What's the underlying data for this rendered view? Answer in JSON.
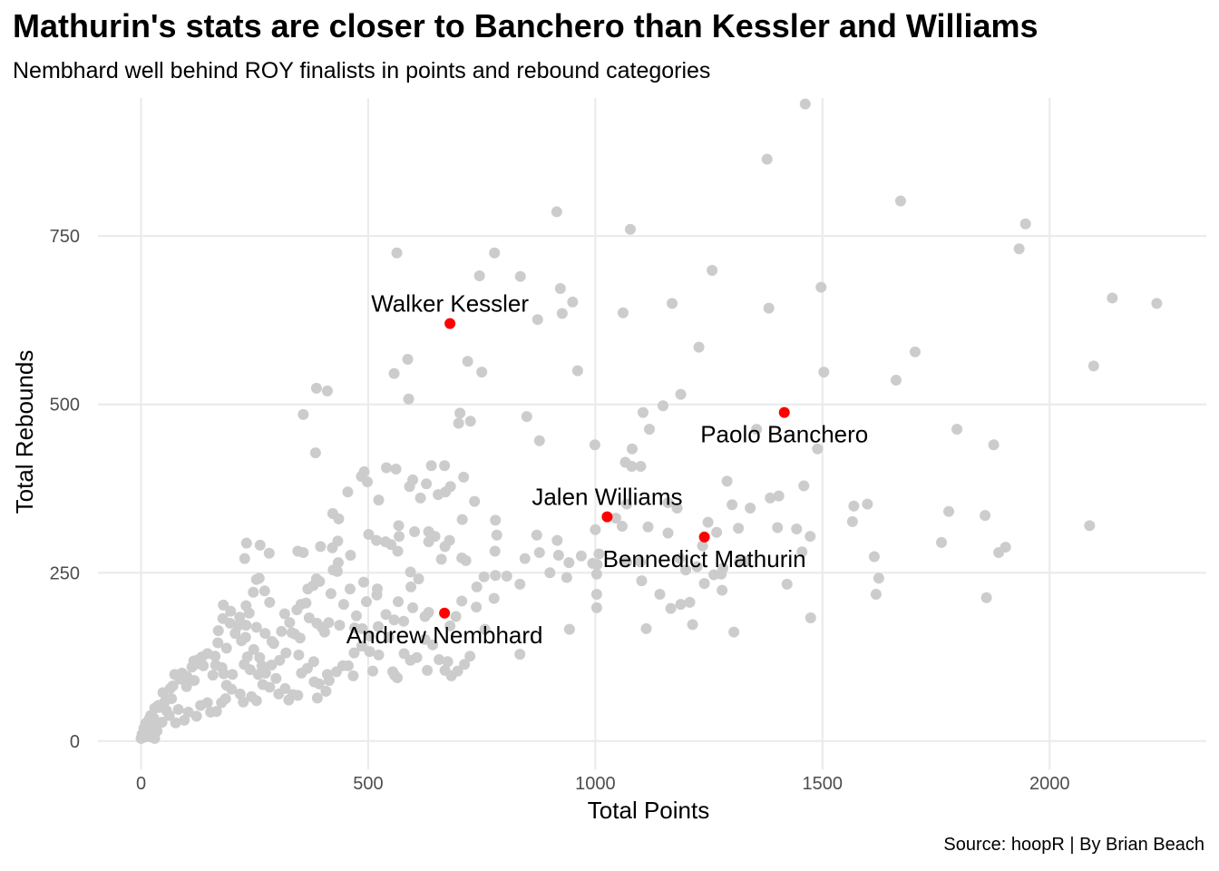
{
  "chart_data": {
    "type": "scatter",
    "title": "Mathurin's stats are closer to Banchero than Kessler and Williams",
    "subtitle": "Nembhard well behind ROY finalists in points and rebound categories",
    "caption": "Source: hoopR | By Brian Beach",
    "xlabel": "Total Points",
    "ylabel": "Total Rebounds",
    "xlim": [
      -95,
      2345
    ],
    "ylim": [
      -42,
      955
    ],
    "xticks": [
      0,
      500,
      1000,
      1500,
      2000
    ],
    "yticks": [
      0,
      250,
      500,
      750
    ],
    "grid": true,
    "colors": {
      "background": "#ffffff",
      "grid": "#ebebeb",
      "point": "#cccccc",
      "highlight": "#ff0000",
      "text": "#000000",
      "tick": "#4d4d4d"
    },
    "highlighted": [
      {
        "name": "Walker Kessler",
        "x": 680,
        "y": 620,
        "label_pos": "above"
      },
      {
        "name": "Paolo Banchero",
        "x": 1416,
        "y": 488,
        "label_pos": "below"
      },
      {
        "name": "Jalen Williams",
        "x": 1026,
        "y": 333,
        "label_pos": "above"
      },
      {
        "name": "Bennedict Mathurin",
        "x": 1240,
        "y": 303,
        "label_pos": "below"
      },
      {
        "name": "Andrew Nembhard",
        "x": 668,
        "y": 190,
        "label_pos": "below"
      }
    ],
    "points": [
      [
        1462,
        946
      ],
      [
        1378,
        864
      ],
      [
        1672,
        802
      ],
      [
        1947,
        768
      ],
      [
        1933,
        731
      ],
      [
        915,
        786
      ],
      [
        1077,
        760
      ],
      [
        563,
        725
      ],
      [
        778,
        725
      ],
      [
        1257,
        699
      ],
      [
        745,
        691
      ],
      [
        835,
        690
      ],
      [
        923,
        672
      ],
      [
        1497,
        674
      ],
      [
        950,
        652
      ],
      [
        2138,
        658
      ],
      [
        2236,
        650
      ],
      [
        1169,
        650
      ],
      [
        1382,
        643
      ],
      [
        1061,
        636
      ],
      [
        927,
        635
      ],
      [
        873,
        626
      ],
      [
        1228,
        585
      ],
      [
        1704,
        578
      ],
      [
        719,
        564
      ],
      [
        587,
        567
      ],
      [
        2097,
        557
      ],
      [
        1662,
        536
      ],
      [
        557,
        546
      ],
      [
        961,
        550
      ],
      [
        750,
        548
      ],
      [
        1503,
        548
      ],
      [
        386,
        524
      ],
      [
        410,
        520
      ],
      [
        1188,
        515
      ],
      [
        589,
        508
      ],
      [
        1149,
        498
      ],
      [
        702,
        487
      ],
      [
        357,
        485
      ],
      [
        725,
        475
      ],
      [
        849,
        482
      ],
      [
        1105,
        488
      ],
      [
        699,
        472
      ],
      [
        1119,
        463
      ],
      [
        1355,
        463
      ],
      [
        1796,
        463
      ],
      [
        1877,
        440
      ],
      [
        877,
        446
      ],
      [
        999,
        440
      ],
      [
        1081,
        434
      ],
      [
        1489,
        434
      ],
      [
        384,
        428
      ],
      [
        639,
        409
      ],
      [
        561,
        404
      ],
      [
        540,
        406
      ],
      [
        668,
        409
      ],
      [
        1066,
        414
      ],
      [
        1080,
        408
      ],
      [
        1100,
        408
      ],
      [
        491,
        400
      ],
      [
        498,
        385
      ],
      [
        598,
        388
      ],
      [
        485,
        393
      ],
      [
        628,
        382
      ],
      [
        710,
        392
      ],
      [
        1290,
        386
      ],
      [
        591,
        378
      ],
      [
        681,
        378
      ],
      [
        1404,
        364
      ],
      [
        1385,
        361
      ],
      [
        1459,
        379
      ],
      [
        1599,
        352
      ],
      [
        1569,
        349
      ],
      [
        455,
        370
      ],
      [
        670,
        370
      ],
      [
        1069,
        352
      ],
      [
        734,
        356
      ],
      [
        523,
        358
      ],
      [
        615,
        361
      ],
      [
        654,
        366
      ],
      [
        1301,
        351
      ],
      [
        1160,
        354
      ],
      [
        1180,
        346
      ],
      [
        1341,
        346
      ],
      [
        1858,
        335
      ],
      [
        1778,
        341
      ],
      [
        1566,
        326
      ],
      [
        2088,
        320
      ],
      [
        1045,
        331
      ],
      [
        422,
        338
      ],
      [
        435,
        330
      ],
      [
        567,
        320
      ],
      [
        568,
        304
      ],
      [
        633,
        311
      ],
      [
        707,
        329
      ],
      [
        780,
        328
      ],
      [
        1000,
        314
      ],
      [
        1059,
        319
      ],
      [
        1116,
        318
      ],
      [
        1160,
        309
      ],
      [
        1248,
        325
      ],
      [
        1267,
        310
      ],
      [
        1315,
        316
      ],
      [
        1401,
        317
      ],
      [
        1443,
        315
      ],
      [
        1473,
        304
      ],
      [
        1762,
        295
      ],
      [
        1903,
        288
      ],
      [
        1888,
        280
      ],
      [
        1614,
        274
      ],
      [
        1455,
        281
      ],
      [
        1236,
        290
      ],
      [
        871,
        306
      ],
      [
        916,
        298
      ],
      [
        501,
        307
      ],
      [
        433,
        297
      ],
      [
        602,
        311
      ],
      [
        679,
        298
      ],
      [
        538,
        296
      ],
      [
        518,
        298
      ],
      [
        633,
        296
      ],
      [
        647,
        304
      ],
      [
        783,
        306
      ],
      [
        232,
        294
      ],
      [
        262,
        291
      ],
      [
        228,
        271
      ],
      [
        282,
        279
      ],
      [
        345,
        282
      ],
      [
        357,
        280
      ],
      [
        395,
        289
      ],
      [
        421,
        287
      ],
      [
        461,
        276
      ],
      [
        550,
        292
      ],
      [
        565,
        282
      ],
      [
        706,
        272
      ],
      [
        715,
        268
      ],
      [
        779,
        282
      ],
      [
        845,
        271
      ],
      [
        877,
        280
      ],
      [
        919,
        276
      ],
      [
        1008,
        278
      ],
      [
        1004,
        262
      ],
      [
        1186,
        271
      ],
      [
        1317,
        266
      ],
      [
        1330,
        267
      ],
      [
        1281,
        257
      ],
      [
        1277,
        248
      ],
      [
        1261,
        247
      ],
      [
        1224,
        259
      ],
      [
        1199,
        254
      ],
      [
        1099,
        266
      ],
      [
        1069,
        266
      ],
      [
        994,
        264
      ],
      [
        969,
        275
      ],
      [
        942,
        265
      ],
      [
        900,
        250
      ],
      [
        937,
        243
      ],
      [
        1003,
        248
      ],
      [
        1102,
        238
      ],
      [
        1422,
        233
      ],
      [
        1624,
        242
      ],
      [
        1618,
        218
      ],
      [
        1861,
        213
      ],
      [
        1279,
        224
      ],
      [
        1240,
        234
      ],
      [
        1188,
        203
      ],
      [
        1208,
        206
      ],
      [
        1166,
        197
      ],
      [
        1142,
        218
      ],
      [
        1003,
        218
      ],
      [
        1003,
        198
      ],
      [
        1214,
        173
      ],
      [
        1305,
        162
      ],
      [
        1112,
        167
      ],
      [
        1474,
        183
      ],
      [
        943,
        166
      ],
      [
        834,
        129
      ],
      [
        757,
        166
      ],
      [
        739,
        229
      ],
      [
        755,
        244
      ],
      [
        780,
        246
      ],
      [
        805,
        245
      ],
      [
        834,
        233
      ],
      [
        777,
        212
      ],
      [
        738,
        199
      ],
      [
        706,
        208
      ],
      [
        693,
        185
      ],
      [
        680,
        171
      ],
      [
        633,
        191
      ],
      [
        625,
        185
      ],
      [
        598,
        198
      ],
      [
        566,
        207
      ],
      [
        593,
        251
      ],
      [
        611,
        241
      ],
      [
        661,
        270
      ],
      [
        669,
        289
      ],
      [
        594,
        229
      ],
      [
        520,
        226
      ],
      [
        519,
        217
      ],
      [
        490,
        236
      ],
      [
        432,
        252
      ],
      [
        434,
        265
      ],
      [
        423,
        254
      ],
      [
        386,
        241
      ],
      [
        393,
        237
      ],
      [
        379,
        231
      ],
      [
        367,
        226
      ],
      [
        352,
        203
      ],
      [
        363,
        205
      ],
      [
        343,
        195
      ],
      [
        327,
        176
      ],
      [
        316,
        189
      ],
      [
        283,
        206
      ],
      [
        272,
        223
      ],
      [
        260,
        242
      ],
      [
        247,
        221
      ],
      [
        254,
        240
      ],
      [
        231,
        201
      ],
      [
        238,
        190
      ],
      [
        231,
        172
      ],
      [
        217,
        184
      ],
      [
        197,
        193
      ],
      [
        180,
        182
      ],
      [
        170,
        164
      ],
      [
        169,
        146
      ],
      [
        181,
        202
      ],
      [
        196,
        175
      ],
      [
        213,
        171
      ],
      [
        207,
        160
      ],
      [
        230,
        154
      ],
      [
        234,
        125
      ],
      [
        248,
        136
      ],
      [
        261,
        124
      ],
      [
        266,
        112
      ],
      [
        240,
        106
      ],
      [
        227,
        114
      ],
      [
        201,
        99
      ],
      [
        182,
        100
      ],
      [
        178,
        109
      ],
      [
        158,
        98
      ],
      [
        163,
        126
      ],
      [
        164,
        113
      ],
      [
        137,
        112
      ],
      [
        126,
        121
      ],
      [
        116,
        119
      ],
      [
        117,
        90
      ],
      [
        101,
        96
      ],
      [
        100,
        81
      ],
      [
        86,
        92
      ],
      [
        74,
        99
      ],
      [
        70,
        82
      ],
      [
        67,
        63
      ],
      [
        52,
        58
      ],
      [
        38,
        53
      ],
      [
        30,
        49
      ],
      [
        21,
        38
      ],
      [
        17,
        32
      ],
      [
        10,
        26
      ],
      [
        6,
        19
      ],
      [
        2,
        10
      ],
      [
        0,
        4
      ],
      [
        8,
        6
      ],
      [
        14,
        14
      ],
      [
        26,
        22
      ],
      [
        35,
        15
      ],
      [
        46,
        28
      ],
      [
        56,
        45
      ],
      [
        62,
        38
      ],
      [
        82,
        47
      ],
      [
        76,
        27
      ],
      [
        95,
        31
      ],
      [
        104,
        43
      ],
      [
        122,
        37
      ],
      [
        131,
        53
      ],
      [
        146,
        57
      ],
      [
        153,
        43
      ],
      [
        166,
        44
      ],
      [
        177,
        57
      ],
      [
        186,
        63
      ],
      [
        188,
        83
      ],
      [
        199,
        77
      ],
      [
        218,
        70
      ],
      [
        225,
        58
      ],
      [
        243,
        66
      ],
      [
        254,
        60
      ],
      [
        268,
        84
      ],
      [
        283,
        80
      ],
      [
        297,
        93
      ],
      [
        303,
        70
      ],
      [
        317,
        78
      ],
      [
        325,
        61
      ],
      [
        334,
        69
      ],
      [
        345,
        68
      ],
      [
        353,
        101
      ],
      [
        366,
        108
      ],
      [
        381,
        88
      ],
      [
        388,
        64
      ],
      [
        392,
        85
      ],
      [
        410,
        99
      ],
      [
        430,
        103
      ],
      [
        444,
        112
      ],
      [
        456,
        112
      ],
      [
        469,
        131
      ],
      [
        486,
        141
      ],
      [
        503,
        133
      ],
      [
        523,
        128
      ],
      [
        545,
        154
      ],
      [
        554,
        103
      ],
      [
        564,
        94
      ],
      [
        579,
        130
      ],
      [
        593,
        120
      ],
      [
        607,
        124
      ],
      [
        625,
        151
      ],
      [
        642,
        143
      ],
      [
        656,
        121
      ],
      [
        675,
        118
      ],
      [
        683,
        97
      ],
      [
        697,
        104
      ],
      [
        712,
        114
      ],
      [
        724,
        126
      ],
      [
        467,
        97
      ],
      [
        510,
        104
      ],
      [
        558,
        98
      ],
      [
        630,
        105
      ],
      [
        669,
        105
      ],
      [
        414,
        90
      ],
      [
        407,
        74
      ],
      [
        380,
        118
      ],
      [
        347,
        128
      ],
      [
        319,
        131
      ],
      [
        305,
        120
      ],
      [
        287,
        113
      ],
      [
        274,
        101
      ],
      [
        258,
        99
      ],
      [
        292,
        145
      ],
      [
        309,
        163
      ],
      [
        338,
        159
      ],
      [
        350,
        153
      ],
      [
        387,
        175
      ],
      [
        398,
        169
      ],
      [
        404,
        162
      ],
      [
        413,
        176
      ],
      [
        437,
        172
      ],
      [
        470,
        168
      ],
      [
        487,
        167
      ],
      [
        539,
        188
      ],
      [
        557,
        180
      ],
      [
        578,
        178
      ],
      [
        522,
        170
      ],
      [
        503,
        156
      ],
      [
        474,
        186
      ],
      [
        446,
        203
      ],
      [
        418,
        219
      ],
      [
        460,
        226
      ],
      [
        496,
        207
      ],
      [
        370,
        183
      ],
      [
        332,
        161
      ],
      [
        288,
        148
      ],
      [
        273,
        160
      ],
      [
        254,
        169
      ],
      [
        221,
        149
      ],
      [
        188,
        138
      ],
      [
        146,
        130
      ],
      [
        134,
        125
      ],
      [
        124,
        115
      ],
      [
        112,
        110
      ],
      [
        90,
        101
      ],
      [
        64,
        78
      ],
      [
        48,
        72
      ],
      [
        39,
        50
      ],
      [
        28,
        34
      ],
      [
        18,
        20
      ],
      [
        12,
        10
      ],
      [
        22,
        6
      ],
      [
        30,
        4
      ]
    ]
  }
}
